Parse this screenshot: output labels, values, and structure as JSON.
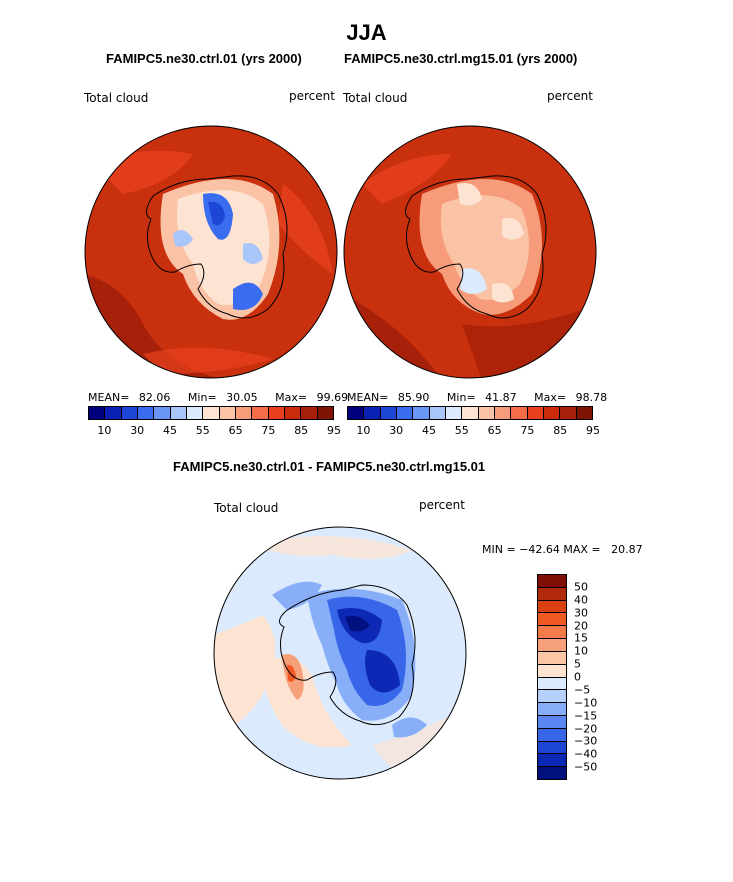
{
  "title": "JJA",
  "panels": [
    {
      "case_title": "FAMIPC5.ne30.ctrl.01 (yrs 2000)",
      "variable": "Total cloud",
      "units": "percent",
      "stats": {
        "mean_label": "MEAN=",
        "mean": "82.06",
        "min_label": "Min=",
        "min": "30.05",
        "max_label": "Max=",
        "max": "99.69"
      }
    },
    {
      "case_title": "FAMIPC5.ne30.ctrl.mg15.01 (yrs 2000)",
      "variable": "Total cloud",
      "units": "percent",
      "stats": {
        "mean_label": "MEAN=",
        "mean": "85.90",
        "min_label": "Min=",
        "min": "41.87",
        "max_label": "Max=",
        "max": "98.78"
      }
    }
  ],
  "diff_panel": {
    "case_title": "FAMIPC5.ne30.ctrl.01 - FAMIPC5.ne30.ctrl.mg15.01",
    "variable": "Total cloud",
    "units": "percent",
    "minmax_text": "MIN = −42.64 MAX =   20.87"
  },
  "colorbar_abs": {
    "colors": [
      "#00007f",
      "#0a1fb4",
      "#1e46d6",
      "#3a6cf0",
      "#6a96f5",
      "#a8c6fa",
      "#dbeafd",
      "#fde3d2",
      "#fbc3a6",
      "#f79c7a",
      "#f26d48",
      "#e9411f",
      "#cc2a0d",
      "#a6200a",
      "#7f1405"
    ],
    "tick_labels": [
      "10",
      "30",
      "45",
      "55",
      "65",
      "75",
      "85",
      "95"
    ]
  },
  "colorbar_diff": {
    "colors": [
      "#7f0e07",
      "#b22a0d",
      "#d8400f",
      "#f25a24",
      "#f57c4a",
      "#f6a07a",
      "#fbc6a6",
      "#fde3d2",
      "#dbeafd",
      "#b5d0fb",
      "#87aef7",
      "#5a86f1",
      "#3766e8",
      "#1d45d6",
      "#0d28b5",
      "#00107f"
    ],
    "labels": [
      "50",
      "40",
      "30",
      "20",
      "15",
      "10",
      "5",
      "0",
      "−5",
      "−10",
      "−15",
      "−20",
      "−30",
      "−40",
      "−50"
    ]
  },
  "chart_data": [
    {
      "type": "heatmap",
      "title": "FAMIPC5.ne30.ctrl.01 (yrs 2000)",
      "projection": "south-polar-stereographic",
      "variable": "Total cloud",
      "units": "percent",
      "mean": 82.06,
      "min": 30.05,
      "max": 99.69,
      "levels": [
        10,
        20,
        30,
        35,
        40,
        45,
        50,
        55,
        60,
        65,
        70,
        75,
        80,
        85,
        90,
        95
      ]
    },
    {
      "type": "heatmap",
      "title": "FAMIPC5.ne30.ctrl.mg15.01 (yrs 2000)",
      "projection": "south-polar-stereographic",
      "variable": "Total cloud",
      "units": "percent",
      "mean": 85.9,
      "min": 41.87,
      "max": 98.78,
      "levels": [
        10,
        20,
        30,
        35,
        40,
        45,
        50,
        55,
        60,
        65,
        70,
        75,
        80,
        85,
        90,
        95
      ]
    },
    {
      "type": "heatmap",
      "title": "FAMIPC5.ne30.ctrl.01 - FAMIPC5.ne30.ctrl.mg15.01",
      "projection": "south-polar-stereographic",
      "variable": "Total cloud",
      "units": "percent",
      "min": -42.64,
      "max": 20.87,
      "levels": [
        -50,
        -40,
        -30,
        -20,
        -15,
        -10,
        -5,
        0,
        5,
        10,
        15,
        20,
        30,
        40,
        50
      ]
    }
  ]
}
